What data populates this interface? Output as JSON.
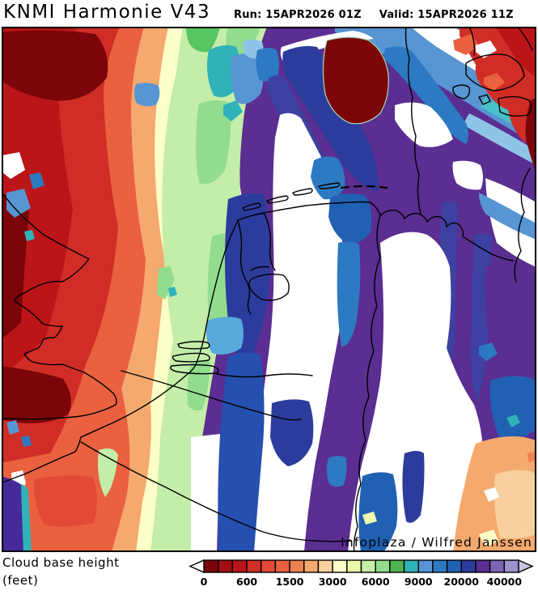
{
  "header": {
    "title": "KNMI Harmonie V43",
    "run_label": "Run:",
    "run_value": "15APR2026 01Z",
    "valid_label": "Valid:",
    "valid_value": "15APR2026 11Z",
    "run_line": "Run: 15APR2026 01Z",
    "valid_line": "Valid: 15APR2026 11Z"
  },
  "map": {
    "attribution": "Infoplaza / Wilfred Janssen",
    "region": "Netherlands / North Sea / NW Germany / SE England / Denmark",
    "frame_color": "#000000"
  },
  "legend": {
    "label_line1": "Cloud base height",
    "label_line2": "(feet)"
  },
  "colorbar": {
    "tick_labels": [
      "0",
      "600",
      "1500",
      "3000",
      "6000",
      "9000",
      "20000",
      "40000"
    ],
    "tick_every_segments": 3,
    "palette": [
      "#7c0509",
      "#a30e13",
      "#bb1519",
      "#cf2d26",
      "#e24a36",
      "#ea6140",
      "#f08250",
      "#f5a96e",
      "#f8d09e",
      "#fcffc8",
      "#e6f7a7",
      "#c4eda9",
      "#92dc8e",
      "#4fb351",
      "#2fb3b9",
      "#5795d3",
      "#2d7ac3",
      "#2161b3",
      "#2c3c9d",
      "#5b2e92",
      "#7b65b7",
      "#9c93cd"
    ],
    "left_arrow_fill": "#ffffff",
    "right_arrow_fill": "#c9c5e5",
    "outline_color": "#000000"
  },
  "map_colors": {
    "maroon": "#7c0509",
    "darkred": "#bb1519",
    "red": "#d02d26",
    "redorange": "#e24a36",
    "orange": "#ea6140",
    "lightorange": "#f08250",
    "peach": "#f5a96e",
    "lightpeach": "#f8d09e",
    "cream": "#fcffc8",
    "paleyellow": "#eef7b0",
    "palegreen": "#c4eda9",
    "green": "#92dc8e",
    "vividgreen": "#57c561",
    "teal": "#2fb3b9",
    "lightteal": "#49c0c6",
    "skyblue": "#5795d3",
    "lightblue": "#5aa9dd",
    "paleblue": "#8ec4e8",
    "blue": "#2d7ac3",
    "darkblue": "#2161b3",
    "indigo": "#2c3c9d",
    "indigo2": "#3d41a2",
    "deepblue": "#2650b0",
    "purple": "#5b2e92",
    "purple2": "#462a99",
    "white": "#ffffff"
  }
}
